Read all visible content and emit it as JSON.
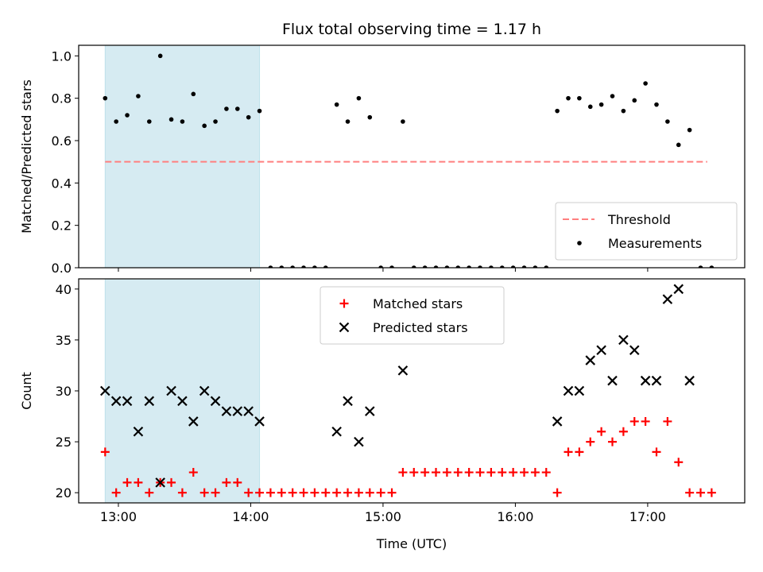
{
  "chart_data": {
    "title": "Flux total observing time = 1.17 h",
    "xlabel": "Time (UTC)",
    "x_ticks": [
      "13:00",
      "14:00",
      "15:00",
      "16:00",
      "17:00"
    ],
    "x_tick_values": [
      "13:00",
      "14:00",
      "15:00",
      "16:00",
      "17:00"
    ],
    "xlim": [
      "12:42",
      "17:44"
    ],
    "shaded_span": [
      "12:54",
      "14:04"
    ],
    "shade_color": "#add8e6",
    "panels": [
      {
        "type": "scatter",
        "ylabel": "Matched/Predicted stars",
        "ylim": [
          0,
          1.05
        ],
        "yticks": [
          "0.0",
          "0.2",
          "0.4",
          "0.6",
          "0.8",
          "1.0"
        ],
        "ytick_values": [
          0,
          0.2,
          0.4,
          0.6,
          0.8,
          1.0
        ],
        "legend_position": "lower right",
        "threshold": {
          "name": "Threshold",
          "y": 0.5,
          "x_range": [
            "12:54",
            "17:27"
          ],
          "color": "#ff7f7f"
        },
        "series": [
          {
            "name": "Measurements",
            "marker": "dot",
            "color": "#000000",
            "points": [
              [
                "12:54",
                0.8
              ],
              [
                "12:59",
                0.69
              ],
              [
                "13:04",
                0.72
              ],
              [
                "13:09",
                0.81
              ],
              [
                "13:14",
                0.69
              ],
              [
                "13:19",
                1.0
              ],
              [
                "13:24",
                0.7
              ],
              [
                "13:29",
                0.69
              ],
              [
                "13:34",
                0.82
              ],
              [
                "13:39",
                0.67
              ],
              [
                "13:44",
                0.69
              ],
              [
                "13:49",
                0.75
              ],
              [
                "13:54",
                0.75
              ],
              [
                "13:59",
                0.71
              ],
              [
                "14:04",
                0.74
              ],
              [
                "14:09",
                0
              ],
              [
                "14:14",
                0
              ],
              [
                "14:19",
                0
              ],
              [
                "14:24",
                0
              ],
              [
                "14:29",
                0
              ],
              [
                "14:34",
                0
              ],
              [
                "14:39",
                0.77
              ],
              [
                "14:44",
                0.69
              ],
              [
                "14:49",
                0.8
              ],
              [
                "14:54",
                0.71
              ],
              [
                "14:59",
                0
              ],
              [
                "15:04",
                0
              ],
              [
                "15:09",
                0.69
              ],
              [
                "15:14",
                0
              ],
              [
                "15:19",
                0
              ],
              [
                "15:24",
                0
              ],
              [
                "15:29",
                0
              ],
              [
                "15:34",
                0
              ],
              [
                "15:39",
                0
              ],
              [
                "15:44",
                0
              ],
              [
                "15:49",
                0
              ],
              [
                "15:54",
                0
              ],
              [
                "15:59",
                0
              ],
              [
                "16:04",
                0
              ],
              [
                "16:09",
                0
              ],
              [
                "16:14",
                0
              ],
              [
                "16:19",
                0.74
              ],
              [
                "16:24",
                0.8
              ],
              [
                "16:29",
                0.8
              ],
              [
                "16:34",
                0.76
              ],
              [
                "16:39",
                0.77
              ],
              [
                "16:44",
                0.81
              ],
              [
                "16:49",
                0.74
              ],
              [
                "16:54",
                0.79
              ],
              [
                "16:59",
                0.87
              ],
              [
                "17:04",
                0.77
              ],
              [
                "17:09",
                0.69
              ],
              [
                "17:14",
                0.58
              ],
              [
                "17:19",
                0.65
              ],
              [
                "17:24",
                0
              ],
              [
                "17:29",
                0
              ]
            ]
          }
        ]
      },
      {
        "type": "scatter",
        "ylabel": "Count",
        "ylim": [
          19,
          41
        ],
        "yticks": [
          "20",
          "25",
          "30",
          "35",
          "40"
        ],
        "ytick_values": [
          20,
          25,
          30,
          35,
          40
        ],
        "legend_position": "upper center",
        "series": [
          {
            "name": "Matched stars",
            "marker": "plus",
            "color": "#ff0000",
            "points": [
              [
                "12:54",
                24
              ],
              [
                "12:59",
                20
              ],
              [
                "13:04",
                21
              ],
              [
                "13:09",
                21
              ],
              [
                "13:14",
                20
              ],
              [
                "13:19",
                21
              ],
              [
                "13:24",
                21
              ],
              [
                "13:29",
                20
              ],
              [
                "13:34",
                22
              ],
              [
                "13:39",
                20
              ],
              [
                "13:44",
                20
              ],
              [
                "13:49",
                21
              ],
              [
                "13:54",
                21
              ],
              [
                "13:59",
                20
              ],
              [
                "14:04",
                20
              ],
              [
                "14:09",
                20
              ],
              [
                "14:14",
                20
              ],
              [
                "14:19",
                20
              ],
              [
                "14:24",
                20
              ],
              [
                "14:29",
                20
              ],
              [
                "14:34",
                20
              ],
              [
                "14:39",
                20
              ],
              [
                "14:44",
                20
              ],
              [
                "14:49",
                20
              ],
              [
                "14:54",
                20
              ],
              [
                "14:59",
                20
              ],
              [
                "15:04",
                20
              ],
              [
                "15:09",
                22
              ],
              [
                "15:14",
                22
              ],
              [
                "15:19",
                22
              ],
              [
                "15:24",
                22
              ],
              [
                "15:29",
                22
              ],
              [
                "15:34",
                22
              ],
              [
                "15:39",
                22
              ],
              [
                "15:44",
                22
              ],
              [
                "15:49",
                22
              ],
              [
                "15:54",
                22
              ],
              [
                "15:59",
                22
              ],
              [
                "16:04",
                22
              ],
              [
                "16:09",
                22
              ],
              [
                "16:14",
                22
              ],
              [
                "16:19",
                20
              ],
              [
                "16:24",
                24
              ],
              [
                "16:29",
                24
              ],
              [
                "16:34",
                25
              ],
              [
                "16:39",
                26
              ],
              [
                "16:44",
                25
              ],
              [
                "16:49",
                26
              ],
              [
                "16:54",
                27
              ],
              [
                "16:59",
                27
              ],
              [
                "17:04",
                24
              ],
              [
                "17:09",
                27
              ],
              [
                "17:14",
                23
              ],
              [
                "17:19",
                20
              ],
              [
                "17:24",
                20
              ],
              [
                "17:29",
                20
              ]
            ]
          },
          {
            "name": "Predicted stars",
            "marker": "x",
            "color": "#000000",
            "points": [
              [
                "12:54",
                30
              ],
              [
                "12:59",
                29
              ],
              [
                "13:04",
                29
              ],
              [
                "13:09",
                26
              ],
              [
                "13:14",
                29
              ],
              [
                "13:19",
                21
              ],
              [
                "13:24",
                30
              ],
              [
                "13:29",
                29
              ],
              [
                "13:34",
                27
              ],
              [
                "13:39",
                30
              ],
              [
                "13:44",
                29
              ],
              [
                "13:49",
                28
              ],
              [
                "13:54",
                28
              ],
              [
                "13:59",
                28
              ],
              [
                "14:04",
                27
              ],
              [
                "14:39",
                26
              ],
              [
                "14:44",
                29
              ],
              [
                "14:49",
                25
              ],
              [
                "14:54",
                28
              ],
              [
                "15:09",
                32
              ],
              [
                "16:19",
                27
              ],
              [
                "16:24",
                30
              ],
              [
                "16:29",
                30
              ],
              [
                "16:34",
                33
              ],
              [
                "16:39",
                34
              ],
              [
                "16:44",
                31
              ],
              [
                "16:49",
                35
              ],
              [
                "16:54",
                34
              ],
              [
                "16:59",
                31
              ],
              [
                "17:04",
                31
              ],
              [
                "17:09",
                39
              ],
              [
                "17:14",
                40
              ],
              [
                "17:19",
                31
              ]
            ]
          }
        ]
      }
    ]
  }
}
